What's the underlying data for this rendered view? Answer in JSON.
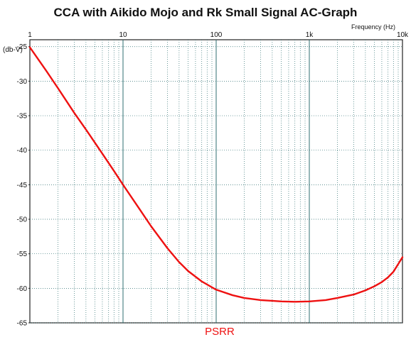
{
  "chart_data": {
    "type": "line",
    "title": "CCA with Aikido Mojo and Rk Small Signal AC-Graph",
    "xlabel": "Frequency   (Hz)",
    "ylabel": "(db-V)",
    "x_scale": "log",
    "xlim": [
      1,
      10000
    ],
    "ylim": [
      -65,
      -24
    ],
    "grid": true,
    "legend_position": "bottom-center",
    "x_ticks": [
      {
        "value": 1,
        "label": "1"
      },
      {
        "value": 10,
        "label": "10"
      },
      {
        "value": 100,
        "label": "100"
      },
      {
        "value": 1000,
        "label": "1k"
      },
      {
        "value": 10000,
        "label": "10k"
      }
    ],
    "y_ticks": [
      {
        "value": -25,
        "label": "-25"
      },
      {
        "value": -30,
        "label": "-30"
      },
      {
        "value": -35,
        "label": "-35"
      },
      {
        "value": -40,
        "label": "-40"
      },
      {
        "value": -45,
        "label": "-45"
      },
      {
        "value": -50,
        "label": "-50"
      },
      {
        "value": -55,
        "label": "-55"
      },
      {
        "value": -60,
        "label": "-60"
      },
      {
        "value": -65,
        "label": "-65"
      }
    ],
    "series": [
      {
        "name": "PSRR",
        "color": "#ee1111",
        "points": [
          [
            1,
            -25.1
          ],
          [
            1.5,
            -28.5
          ],
          [
            2,
            -31.0
          ],
          [
            3,
            -34.6
          ],
          [
            4,
            -37.0
          ],
          [
            6,
            -40.5
          ],
          [
            8,
            -43.0
          ],
          [
            10,
            -45.0
          ],
          [
            15,
            -48.5
          ],
          [
            20,
            -51.0
          ],
          [
            30,
            -54.2
          ],
          [
            40,
            -56.2
          ],
          [
            50,
            -57.5
          ],
          [
            70,
            -59.0
          ],
          [
            100,
            -60.2
          ],
          [
            150,
            -61.0
          ],
          [
            200,
            -61.4
          ],
          [
            300,
            -61.7
          ],
          [
            500,
            -61.9
          ],
          [
            700,
            -61.95
          ],
          [
            1000,
            -61.9
          ],
          [
            1500,
            -61.7
          ],
          [
            2000,
            -61.4
          ],
          [
            3000,
            -60.9
          ],
          [
            4000,
            -60.3
          ],
          [
            5000,
            -59.7
          ],
          [
            6000,
            -59.1
          ],
          [
            7000,
            -58.4
          ],
          [
            8000,
            -57.6
          ],
          [
            10000,
            -55.5
          ]
        ]
      }
    ]
  }
}
